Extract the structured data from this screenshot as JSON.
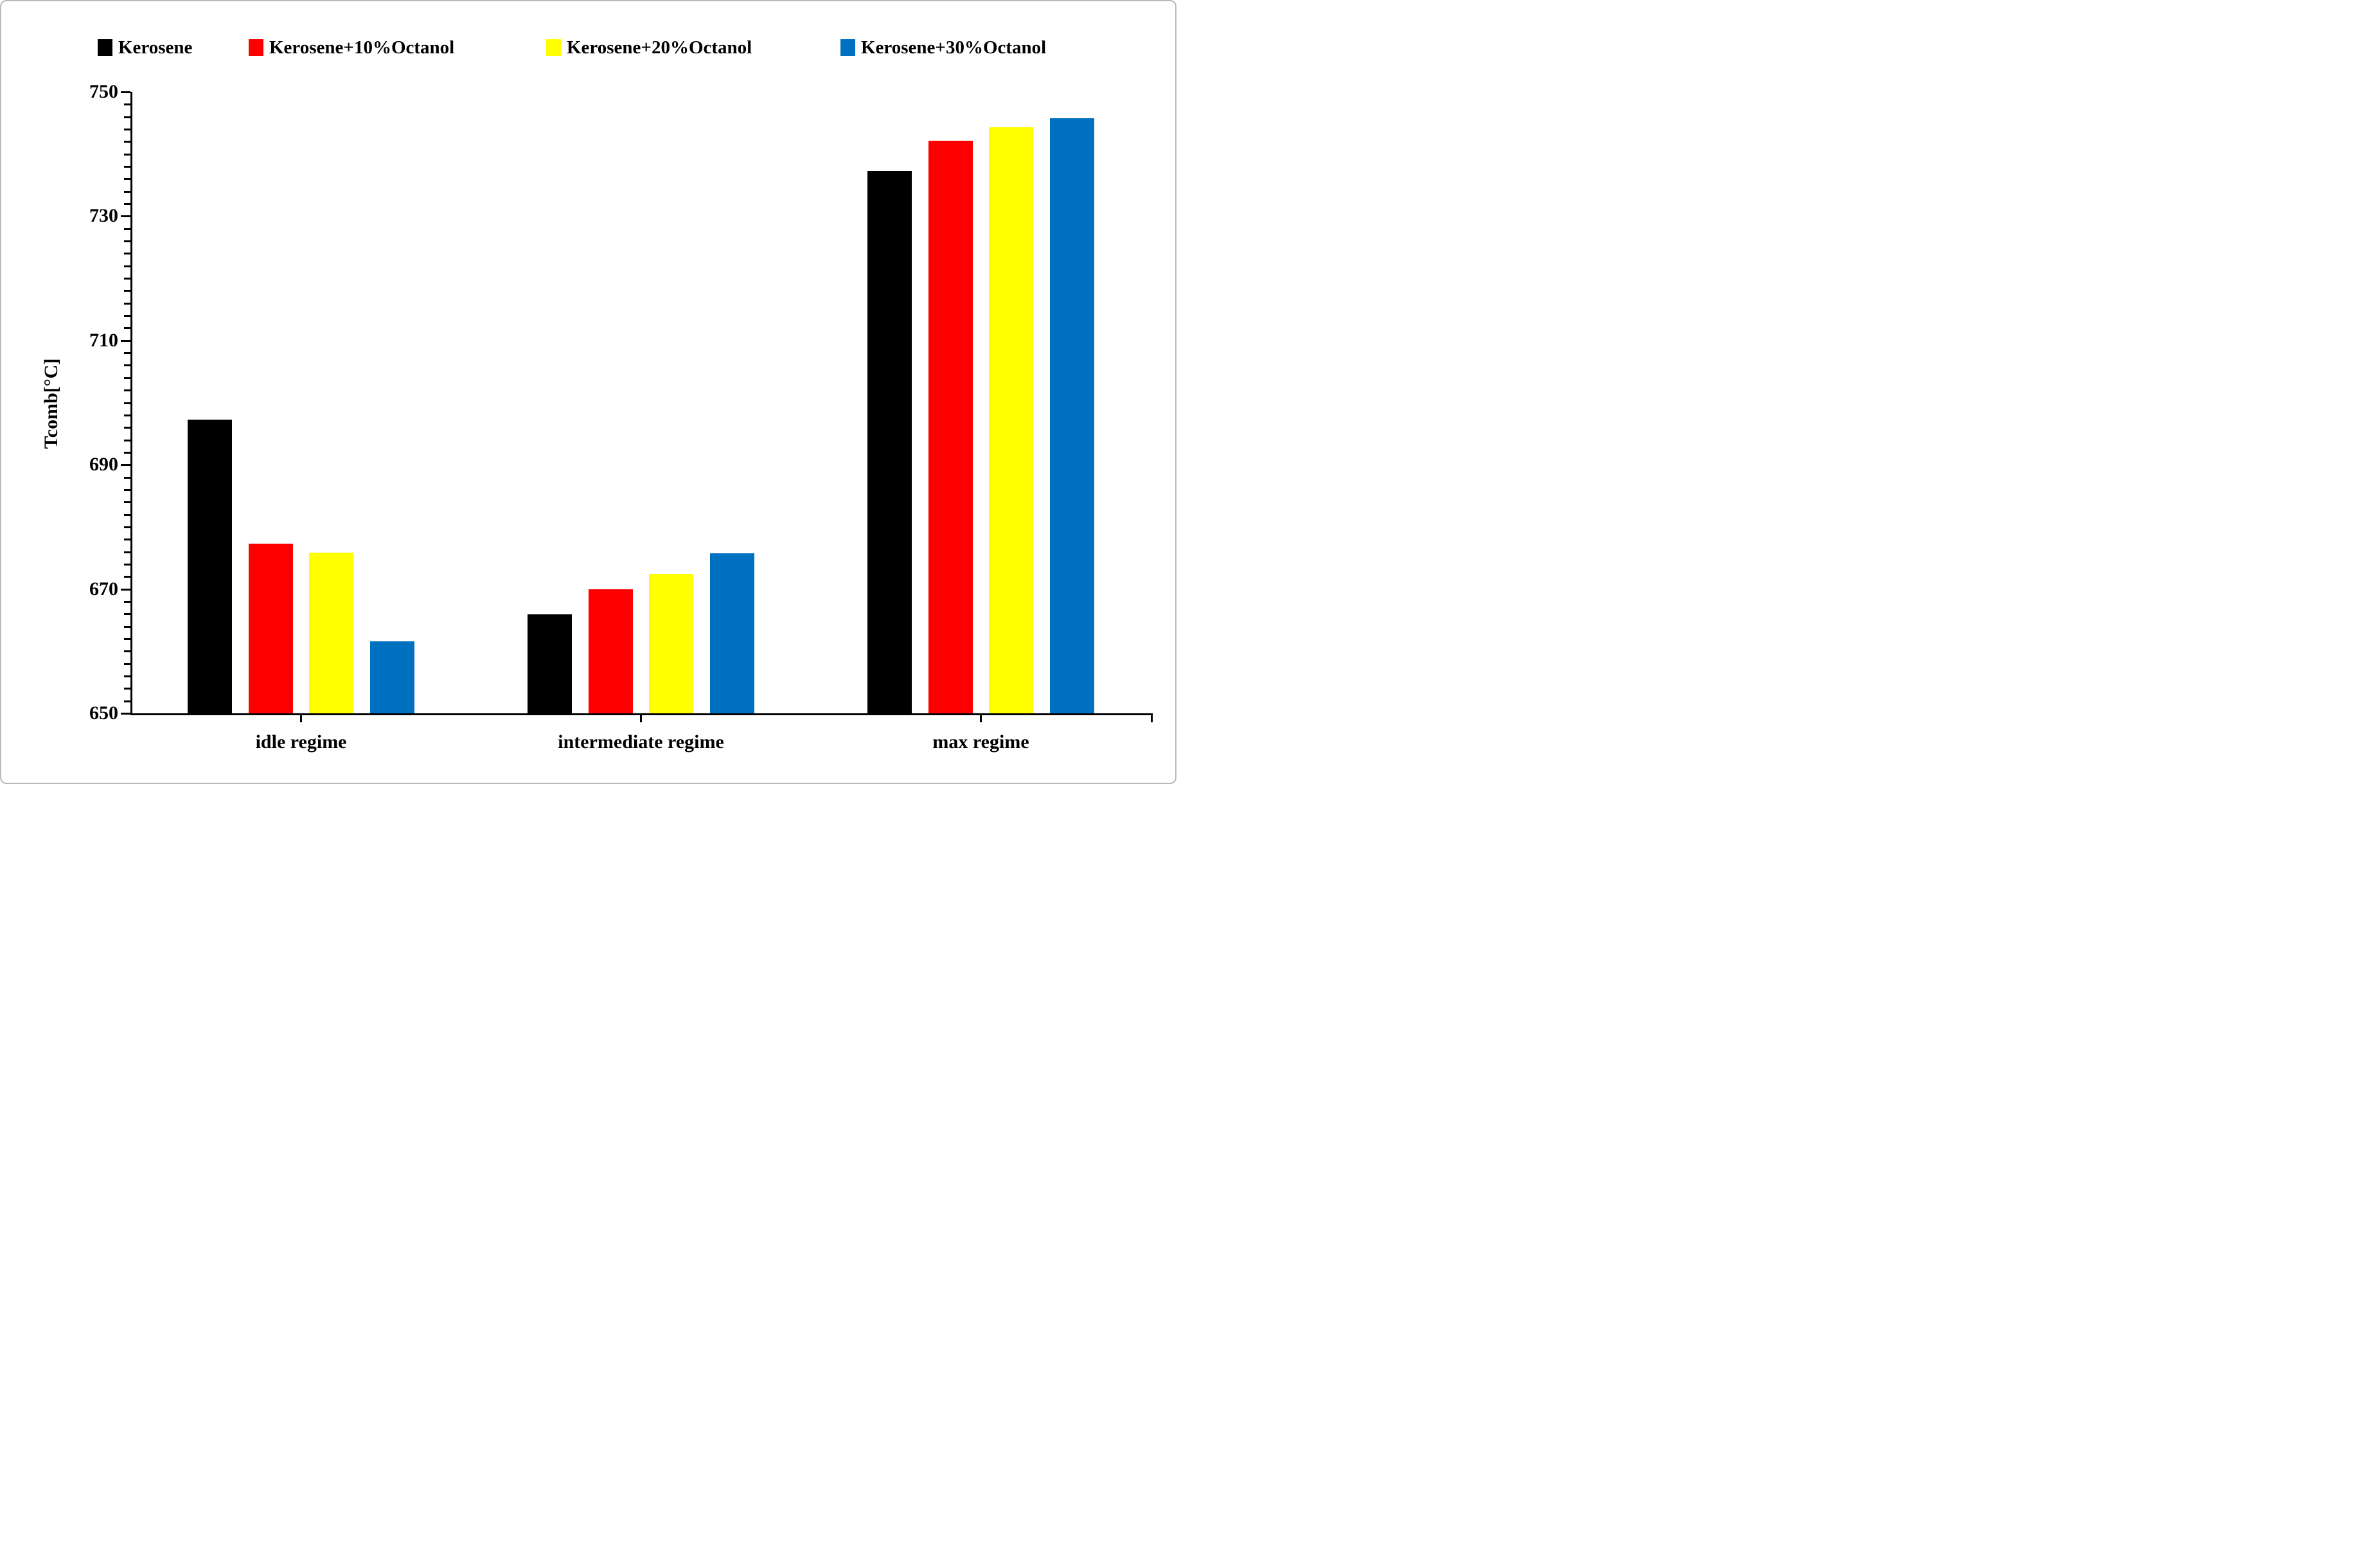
{
  "figure": {
    "background": "#ffffff"
  },
  "chart_data": {
    "type": "bar",
    "title": "",
    "xlabel": "",
    "ylabel": "Tcomb[°C]",
    "ylim": [
      650,
      750
    ],
    "yticks": [
      650,
      670,
      690,
      710,
      730,
      750
    ],
    "minor_tick_interval": 2,
    "grid": false,
    "legend_position": "top",
    "categories": [
      "idle regime",
      "intermediate regime",
      "max regime"
    ],
    "series": [
      {
        "name": "Kerosene",
        "color": "#000000",
        "values": [
          697.3,
          665.9,
          737.3
        ]
      },
      {
        "name": "Kerosene+10%Octanol",
        "color": "#ff0000",
        "values": [
          677.3,
          670.0,
          742.1
        ]
      },
      {
        "name": "Kerosene+20%Octanol",
        "color": "#ffff00",
        "values": [
          675.9,
          672.4,
          744.3
        ]
      },
      {
        "name": "Kerosene+30%Octanol",
        "color": "#0071c1",
        "values": [
          661.6,
          675.8,
          745.8
        ]
      }
    ]
  }
}
